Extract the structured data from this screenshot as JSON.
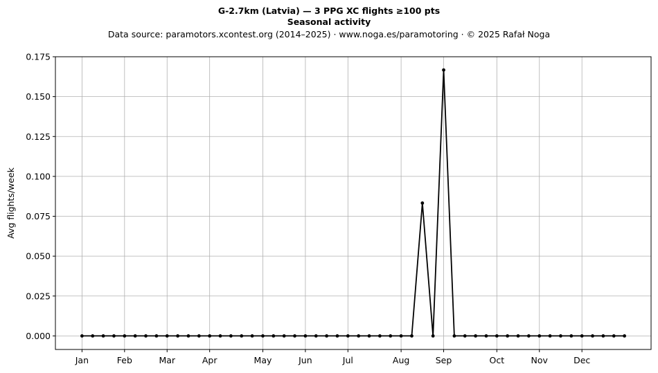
{
  "chart_data": {
    "type": "line",
    "title": "G-2.7km (Latvia)  —  3 PPG XC flights ≥100 pts",
    "subtitle": "Seasonal activity",
    "source_line": "Data source: paramotors.xcontest.org (2014–2025)  ·  www.noga.es/paramotoring  ·  © 2025 Rafał Noga",
    "xlabel": "",
    "ylabel": "Avg flights/week",
    "x_weeks": [
      1,
      2,
      3,
      4,
      5,
      6,
      7,
      8,
      9,
      10,
      11,
      12,
      13,
      14,
      15,
      16,
      17,
      18,
      19,
      20,
      21,
      22,
      23,
      24,
      25,
      26,
      27,
      28,
      29,
      30,
      31,
      32,
      33,
      34,
      35,
      36,
      37,
      38,
      39,
      40,
      41,
      42,
      43,
      44,
      45,
      46,
      47,
      48,
      49,
      50,
      51,
      52
    ],
    "values": [
      0,
      0,
      0,
      0,
      0,
      0,
      0,
      0,
      0,
      0,
      0,
      0,
      0,
      0,
      0,
      0,
      0,
      0,
      0,
      0,
      0,
      0,
      0,
      0,
      0,
      0,
      0,
      0,
      0,
      0,
      0,
      0,
      0.0833,
      0,
      0.1667,
      0,
      0,
      0,
      0,
      0,
      0,
      0,
      0,
      0,
      0,
      0,
      0,
      0,
      0,
      0,
      0,
      0
    ],
    "xlim": [
      -1.5,
      54.5
    ],
    "ylim": [
      -0.0085,
      0.175
    ],
    "yticks": [
      0.0,
      0.025,
      0.05,
      0.075,
      0.1,
      0.125,
      0.15,
      0.175
    ],
    "ytick_labels": [
      "0.000",
      "0.025",
      "0.050",
      "0.075",
      "0.100",
      "0.125",
      "0.150",
      "0.175"
    ],
    "month_ticks": [
      {
        "label": "Jan",
        "week": 1
      },
      {
        "label": "Feb",
        "week": 5
      },
      {
        "label": "Mar",
        "week": 9
      },
      {
        "label": "Apr",
        "week": 13
      },
      {
        "label": "May",
        "week": 18
      },
      {
        "label": "Jun",
        "week": 22
      },
      {
        "label": "Jul",
        "week": 26
      },
      {
        "label": "Aug",
        "week": 31
      },
      {
        "label": "Sep",
        "week": 35
      },
      {
        "label": "Oct",
        "week": 40
      },
      {
        "label": "Nov",
        "week": 44
      },
      {
        "label": "Dec",
        "week": 48
      }
    ],
    "grid": true,
    "line_color": "#000000",
    "grid_color": "#b0b0b0"
  }
}
